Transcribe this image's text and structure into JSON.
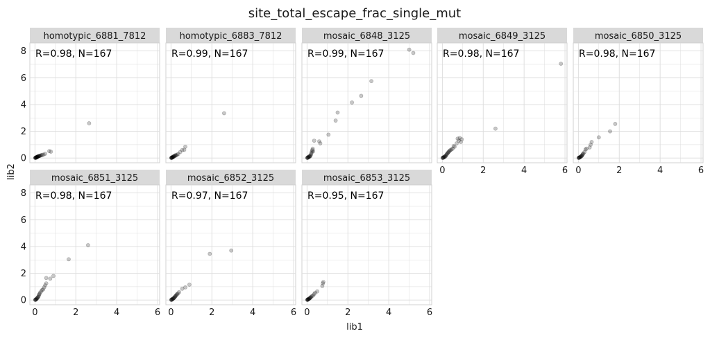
{
  "figure": {
    "title": "site_total_escape_frac_single_mut",
    "xlabel": "lib1",
    "ylabel": "lib2"
  },
  "chart_data": {
    "type": "scatter",
    "title": "site_total_escape_frac_single_mut",
    "xlabel": "lib1",
    "ylabel": "lib2",
    "xlim": [
      -0.25,
      6.1
    ],
    "ylim": [
      -0.35,
      8.6
    ],
    "xticks": [
      0,
      2,
      4,
      6
    ],
    "yticks": [
      0,
      2,
      4,
      6,
      8
    ],
    "grid": true,
    "point_color": "#000000",
    "point_alpha": 0.22,
    "strip_color": "#d9d9d9",
    "grid_color": "#dcdcdc",
    "panels": [
      {
        "name": "homotypic_6881_7812",
        "annotation": "R=0.98, N=167",
        "points": [
          [
            0.01,
            0.01
          ],
          [
            0.02,
            0.02
          ],
          [
            0.03,
            0.02
          ],
          [
            0.04,
            0.04
          ],
          [
            0.05,
            0.03
          ],
          [
            0.06,
            0.05
          ],
          [
            0.07,
            0.06
          ],
          [
            0.08,
            0.05
          ],
          [
            0.09,
            0.08
          ],
          [
            0.1,
            0.09
          ],
          [
            0.11,
            0.07
          ],
          [
            0.12,
            0.1
          ],
          [
            0.13,
            0.11
          ],
          [
            0.15,
            0.12
          ],
          [
            0.16,
            0.13
          ],
          [
            0.18,
            0.14
          ],
          [
            0.2,
            0.15
          ],
          [
            0.22,
            0.16
          ],
          [
            0.25,
            0.18
          ],
          [
            0.28,
            0.2
          ],
          [
            0.32,
            0.22
          ],
          [
            0.36,
            0.24
          ],
          [
            0.42,
            0.26
          ],
          [
            0.5,
            0.32
          ],
          [
            0.7,
            0.52
          ],
          [
            0.78,
            0.48
          ],
          [
            2.65,
            2.6
          ]
        ]
      },
      {
        "name": "homotypic_6883_7812",
        "annotation": "R=0.99, N=167",
        "points": [
          [
            0.01,
            0.01
          ],
          [
            0.02,
            0.02
          ],
          [
            0.03,
            0.03
          ],
          [
            0.04,
            0.02
          ],
          [
            0.05,
            0.05
          ],
          [
            0.06,
            0.04
          ],
          [
            0.07,
            0.07
          ],
          [
            0.08,
            0.06
          ],
          [
            0.1,
            0.1
          ],
          [
            0.12,
            0.09
          ],
          [
            0.13,
            0.13
          ],
          [
            0.15,
            0.12
          ],
          [
            0.17,
            0.16
          ],
          [
            0.2,
            0.18
          ],
          [
            0.22,
            0.22
          ],
          [
            0.25,
            0.2
          ],
          [
            0.3,
            0.25
          ],
          [
            0.35,
            0.3
          ],
          [
            0.45,
            0.45
          ],
          [
            0.55,
            0.6
          ],
          [
            0.65,
            0.62
          ],
          [
            0.7,
            0.85
          ],
          [
            2.6,
            3.35
          ]
        ]
      },
      {
        "name": "mosaic_6848_3125",
        "annotation": "R=0.99, N=167",
        "points": [
          [
            0.01,
            0.01
          ],
          [
            0.02,
            0.03
          ],
          [
            0.03,
            0.02
          ],
          [
            0.05,
            0.05
          ],
          [
            0.06,
            0.08
          ],
          [
            0.08,
            0.06
          ],
          [
            0.1,
            0.12
          ],
          [
            0.12,
            0.1
          ],
          [
            0.14,
            0.16
          ],
          [
            0.16,
            0.14
          ],
          [
            0.18,
            0.22
          ],
          [
            0.2,
            0.3
          ],
          [
            0.22,
            0.4
          ],
          [
            0.24,
            0.5
          ],
          [
            0.26,
            0.6
          ],
          [
            0.28,
            0.7
          ],
          [
            0.3,
            0.5
          ],
          [
            0.35,
            1.3
          ],
          [
            0.6,
            1.25
          ],
          [
            0.65,
            1.1
          ],
          [
            1.05,
            1.75
          ],
          [
            1.4,
            2.8
          ],
          [
            1.5,
            3.4
          ],
          [
            2.2,
            4.15
          ],
          [
            2.65,
            4.65
          ],
          [
            3.15,
            5.75
          ],
          [
            5.0,
            8.1
          ],
          [
            5.2,
            7.85
          ]
        ]
      },
      {
        "name": "mosaic_6849_3125",
        "annotation": "R=0.98, N=167",
        "points": [
          [
            0.01,
            0.01
          ],
          [
            0.02,
            0.02
          ],
          [
            0.04,
            0.03
          ],
          [
            0.05,
            0.06
          ],
          [
            0.07,
            0.05
          ],
          [
            0.09,
            0.1
          ],
          [
            0.11,
            0.09
          ],
          [
            0.13,
            0.14
          ],
          [
            0.15,
            0.12
          ],
          [
            0.18,
            0.2
          ],
          [
            0.2,
            0.25
          ],
          [
            0.22,
            0.3
          ],
          [
            0.25,
            0.35
          ],
          [
            0.28,
            0.4
          ],
          [
            0.3,
            0.45
          ],
          [
            0.33,
            0.5
          ],
          [
            0.36,
            0.55
          ],
          [
            0.4,
            0.6
          ],
          [
            0.45,
            0.65
          ],
          [
            0.5,
            0.7
          ],
          [
            0.55,
            0.9
          ],
          [
            0.6,
            0.85
          ],
          [
            0.7,
            1.1
          ],
          [
            0.75,
            1.45
          ],
          [
            0.8,
            1.3
          ],
          [
            0.85,
            1.5
          ],
          [
            0.9,
            1.2
          ],
          [
            0.95,
            1.4
          ],
          [
            2.6,
            2.2
          ],
          [
            5.8,
            7.05
          ]
        ]
      },
      {
        "name": "mosaic_6850_3125",
        "annotation": "R=0.98, N=167",
        "points": [
          [
            0.01,
            0.01
          ],
          [
            0.02,
            0.02
          ],
          [
            0.03,
            0.03
          ],
          [
            0.05,
            0.04
          ],
          [
            0.06,
            0.06
          ],
          [
            0.08,
            0.07
          ],
          [
            0.1,
            0.09
          ],
          [
            0.12,
            0.12
          ],
          [
            0.14,
            0.13
          ],
          [
            0.16,
            0.16
          ],
          [
            0.18,
            0.2
          ],
          [
            0.2,
            0.25
          ],
          [
            0.22,
            0.3
          ],
          [
            0.25,
            0.35
          ],
          [
            0.3,
            0.45
          ],
          [
            0.35,
            0.65
          ],
          [
            0.4,
            0.7
          ],
          [
            0.55,
            0.8
          ],
          [
            0.6,
            1.0
          ],
          [
            0.65,
            1.2
          ],
          [
            1.0,
            1.55
          ],
          [
            1.55,
            2.0
          ],
          [
            1.8,
            2.55
          ]
        ]
      },
      {
        "name": "mosaic_6851_3125",
        "annotation": "R=0.98, N=167",
        "points": [
          [
            0.01,
            0.01
          ],
          [
            0.02,
            0.03
          ],
          [
            0.03,
            0.02
          ],
          [
            0.05,
            0.06
          ],
          [
            0.06,
            0.05
          ],
          [
            0.08,
            0.1
          ],
          [
            0.1,
            0.12
          ],
          [
            0.12,
            0.16
          ],
          [
            0.14,
            0.2
          ],
          [
            0.16,
            0.25
          ],
          [
            0.18,
            0.3
          ],
          [
            0.2,
            0.4
          ],
          [
            0.22,
            0.45
          ],
          [
            0.25,
            0.55
          ],
          [
            0.3,
            0.65
          ],
          [
            0.35,
            0.75
          ],
          [
            0.4,
            0.8
          ],
          [
            0.45,
            0.95
          ],
          [
            0.5,
            1.1
          ],
          [
            0.55,
            1.25
          ],
          [
            0.55,
            1.65
          ],
          [
            0.75,
            1.6
          ],
          [
            0.9,
            1.8
          ],
          [
            1.65,
            3.05
          ],
          [
            2.6,
            4.1
          ]
        ]
      },
      {
        "name": "mosaic_6852_3125",
        "annotation": "R=0.97, N=167",
        "points": [
          [
            0.01,
            0.01
          ],
          [
            0.02,
            0.02
          ],
          [
            0.03,
            0.04
          ],
          [
            0.05,
            0.03
          ],
          [
            0.06,
            0.07
          ],
          [
            0.08,
            0.08
          ],
          [
            0.1,
            0.1
          ],
          [
            0.12,
            0.13
          ],
          [
            0.14,
            0.15
          ],
          [
            0.16,
            0.18
          ],
          [
            0.18,
            0.22
          ],
          [
            0.2,
            0.26
          ],
          [
            0.22,
            0.3
          ],
          [
            0.25,
            0.35
          ],
          [
            0.28,
            0.4
          ],
          [
            0.3,
            0.45
          ],
          [
            0.35,
            0.5
          ],
          [
            0.4,
            0.6
          ],
          [
            0.55,
            0.85
          ],
          [
            0.7,
            0.95
          ],
          [
            0.9,
            1.15
          ],
          [
            1.9,
            3.45
          ],
          [
            2.95,
            3.7
          ]
        ]
      },
      {
        "name": "mosaic_6853_3125",
        "annotation": "R=0.95, N=167",
        "points": [
          [
            0.01,
            0.01
          ],
          [
            0.02,
            0.02
          ],
          [
            0.03,
            0.03
          ],
          [
            0.04,
            0.05
          ],
          [
            0.05,
            0.04
          ],
          [
            0.06,
            0.07
          ],
          [
            0.08,
            0.08
          ],
          [
            0.1,
            0.1
          ],
          [
            0.12,
            0.12
          ],
          [
            0.14,
            0.15
          ],
          [
            0.16,
            0.18
          ],
          [
            0.18,
            0.2
          ],
          [
            0.2,
            0.25
          ],
          [
            0.25,
            0.3
          ],
          [
            0.3,
            0.35
          ],
          [
            0.35,
            0.45
          ],
          [
            0.4,
            0.55
          ],
          [
            0.5,
            0.65
          ],
          [
            0.75,
            1.05
          ],
          [
            0.78,
            1.25
          ],
          [
            0.8,
            1.35
          ]
        ]
      }
    ]
  }
}
